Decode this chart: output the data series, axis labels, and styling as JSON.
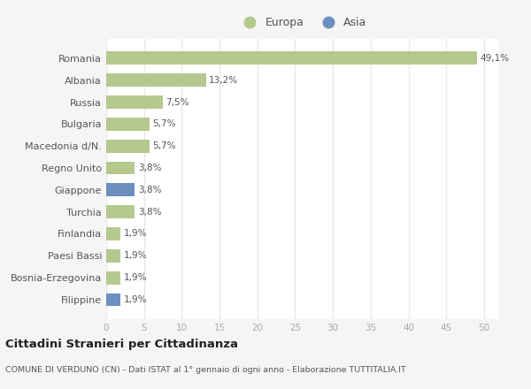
{
  "countries": [
    "Romania",
    "Albania",
    "Russia",
    "Bulgaria",
    "Macedonia d/N.",
    "Regno Unito",
    "Giappone",
    "Turchia",
    "Finlandia",
    "Paesi Bassi",
    "Bosnia-Erzegovina",
    "Filippine"
  ],
  "values": [
    49.1,
    13.2,
    7.5,
    5.7,
    5.7,
    3.8,
    3.8,
    3.8,
    1.9,
    1.9,
    1.9,
    1.9
  ],
  "labels": [
    "49,1%",
    "13,2%",
    "7,5%",
    "5,7%",
    "5,7%",
    "3,8%",
    "3,8%",
    "3,8%",
    "1,9%",
    "1,9%",
    "1,9%",
    "1,9%"
  ],
  "continents": [
    "Europa",
    "Europa",
    "Europa",
    "Europa",
    "Europa",
    "Europa",
    "Asia",
    "Europa",
    "Europa",
    "Europa",
    "Europa",
    "Asia"
  ],
  "europa_color": "#b5c98e",
  "asia_color": "#6b8fbe",
  "fig_bg_color": "#f5f5f5",
  "plot_bg_color": "#ffffff",
  "grid_color": "#e8e8e8",
  "text_color": "#555555",
  "title": "Cittadini Stranieri per Cittadinanza",
  "subtitle": "COMUNE DI VERDUNO (CN) - Dati ISTAT al 1° gennaio di ogni anno - Elaborazione TUTTITALIA.IT",
  "xlim": [
    0,
    52
  ],
  "xticks": [
    0,
    5,
    10,
    15,
    20,
    25,
    30,
    35,
    40,
    45,
    50
  ]
}
